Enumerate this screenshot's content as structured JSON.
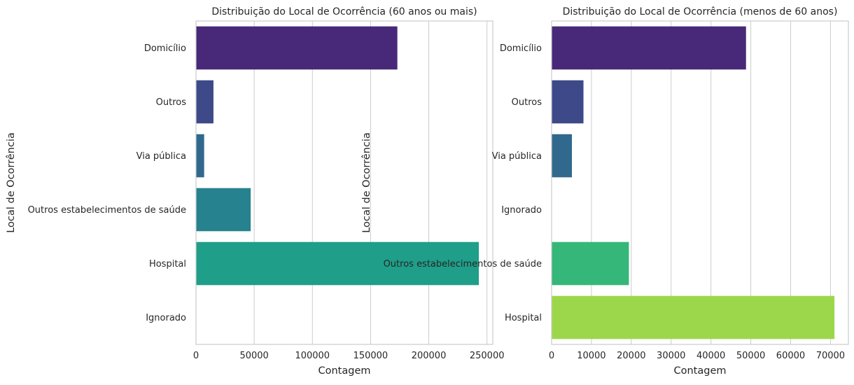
{
  "chart_data": [
    {
      "type": "bar",
      "orientation": "horizontal",
      "title": "Distribuição do Local de Ocorrência (60 anos ou mais)",
      "xlabel": "Contagem",
      "ylabel": "Local de Ocorrência",
      "categories": [
        "Domicílio",
        "Outros",
        "Via pública",
        "Outros estabelecimentos de saúde",
        "Hospital",
        "Ignorado"
      ],
      "values": [
        173000,
        15000,
        7000,
        47000,
        243000,
        300
      ],
      "colors": [
        "#482878",
        "#3e4989",
        "#31688e",
        "#26828e",
        "#1f9e89",
        "#35b779"
      ],
      "xlim": [
        0,
        255000
      ],
      "xticks": [
        0,
        50000,
        100000,
        150000,
        200000,
        250000
      ],
      "xtick_labels": [
        "0",
        "50000",
        "100000",
        "150000",
        "200000",
        "250000"
      ],
      "grid": "vertical"
    },
    {
      "type": "bar",
      "orientation": "horizontal",
      "title": "Distribuição do Local de Ocorrência (menos de 60 anos)",
      "xlabel": "Contagem",
      "ylabel": "Local de Ocorrência",
      "categories": [
        "Domicílio",
        "Outros",
        "Via pública",
        "Ignorado",
        "Outros estabelecimentos de saúde",
        "Hospital"
      ],
      "values": [
        48800,
        8000,
        5100,
        50,
        19400,
        71000
      ],
      "colors": [
        "#482878",
        "#3e4989",
        "#31688e",
        "#26828e",
        "#35b779",
        "#9cd74b"
      ],
      "xlim": [
        0,
        74500
      ],
      "xticks": [
        0,
        10000,
        20000,
        30000,
        40000,
        50000,
        60000,
        70000
      ],
      "xtick_labels": [
        "0",
        "10000",
        "20000",
        "30000",
        "40000",
        "50000",
        "60000",
        "70000"
      ],
      "grid": "vertical"
    }
  ]
}
